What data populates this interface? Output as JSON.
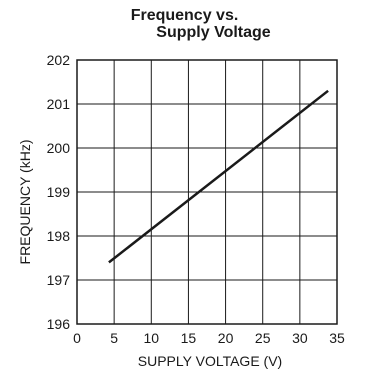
{
  "chart_data": {
    "type": "line",
    "title": "Frequency vs.",
    "subtitle": "Supply Voltage",
    "xlabel": "SUPPLY VOLTAGE (V)",
    "ylabel": "FREQUENCY (kHz)",
    "xlim": [
      0,
      35
    ],
    "ylim": [
      196,
      202
    ],
    "xticks": [
      "0",
      "5",
      "10",
      "15",
      "20",
      "25",
      "30",
      "35"
    ],
    "yticks": [
      "196",
      "197",
      "198",
      "199",
      "200",
      "201",
      "202"
    ],
    "grid": true,
    "series": [
      {
        "x": [
          4.3,
          33.8
        ],
        "y": [
          197.4,
          201.3
        ]
      }
    ]
  }
}
